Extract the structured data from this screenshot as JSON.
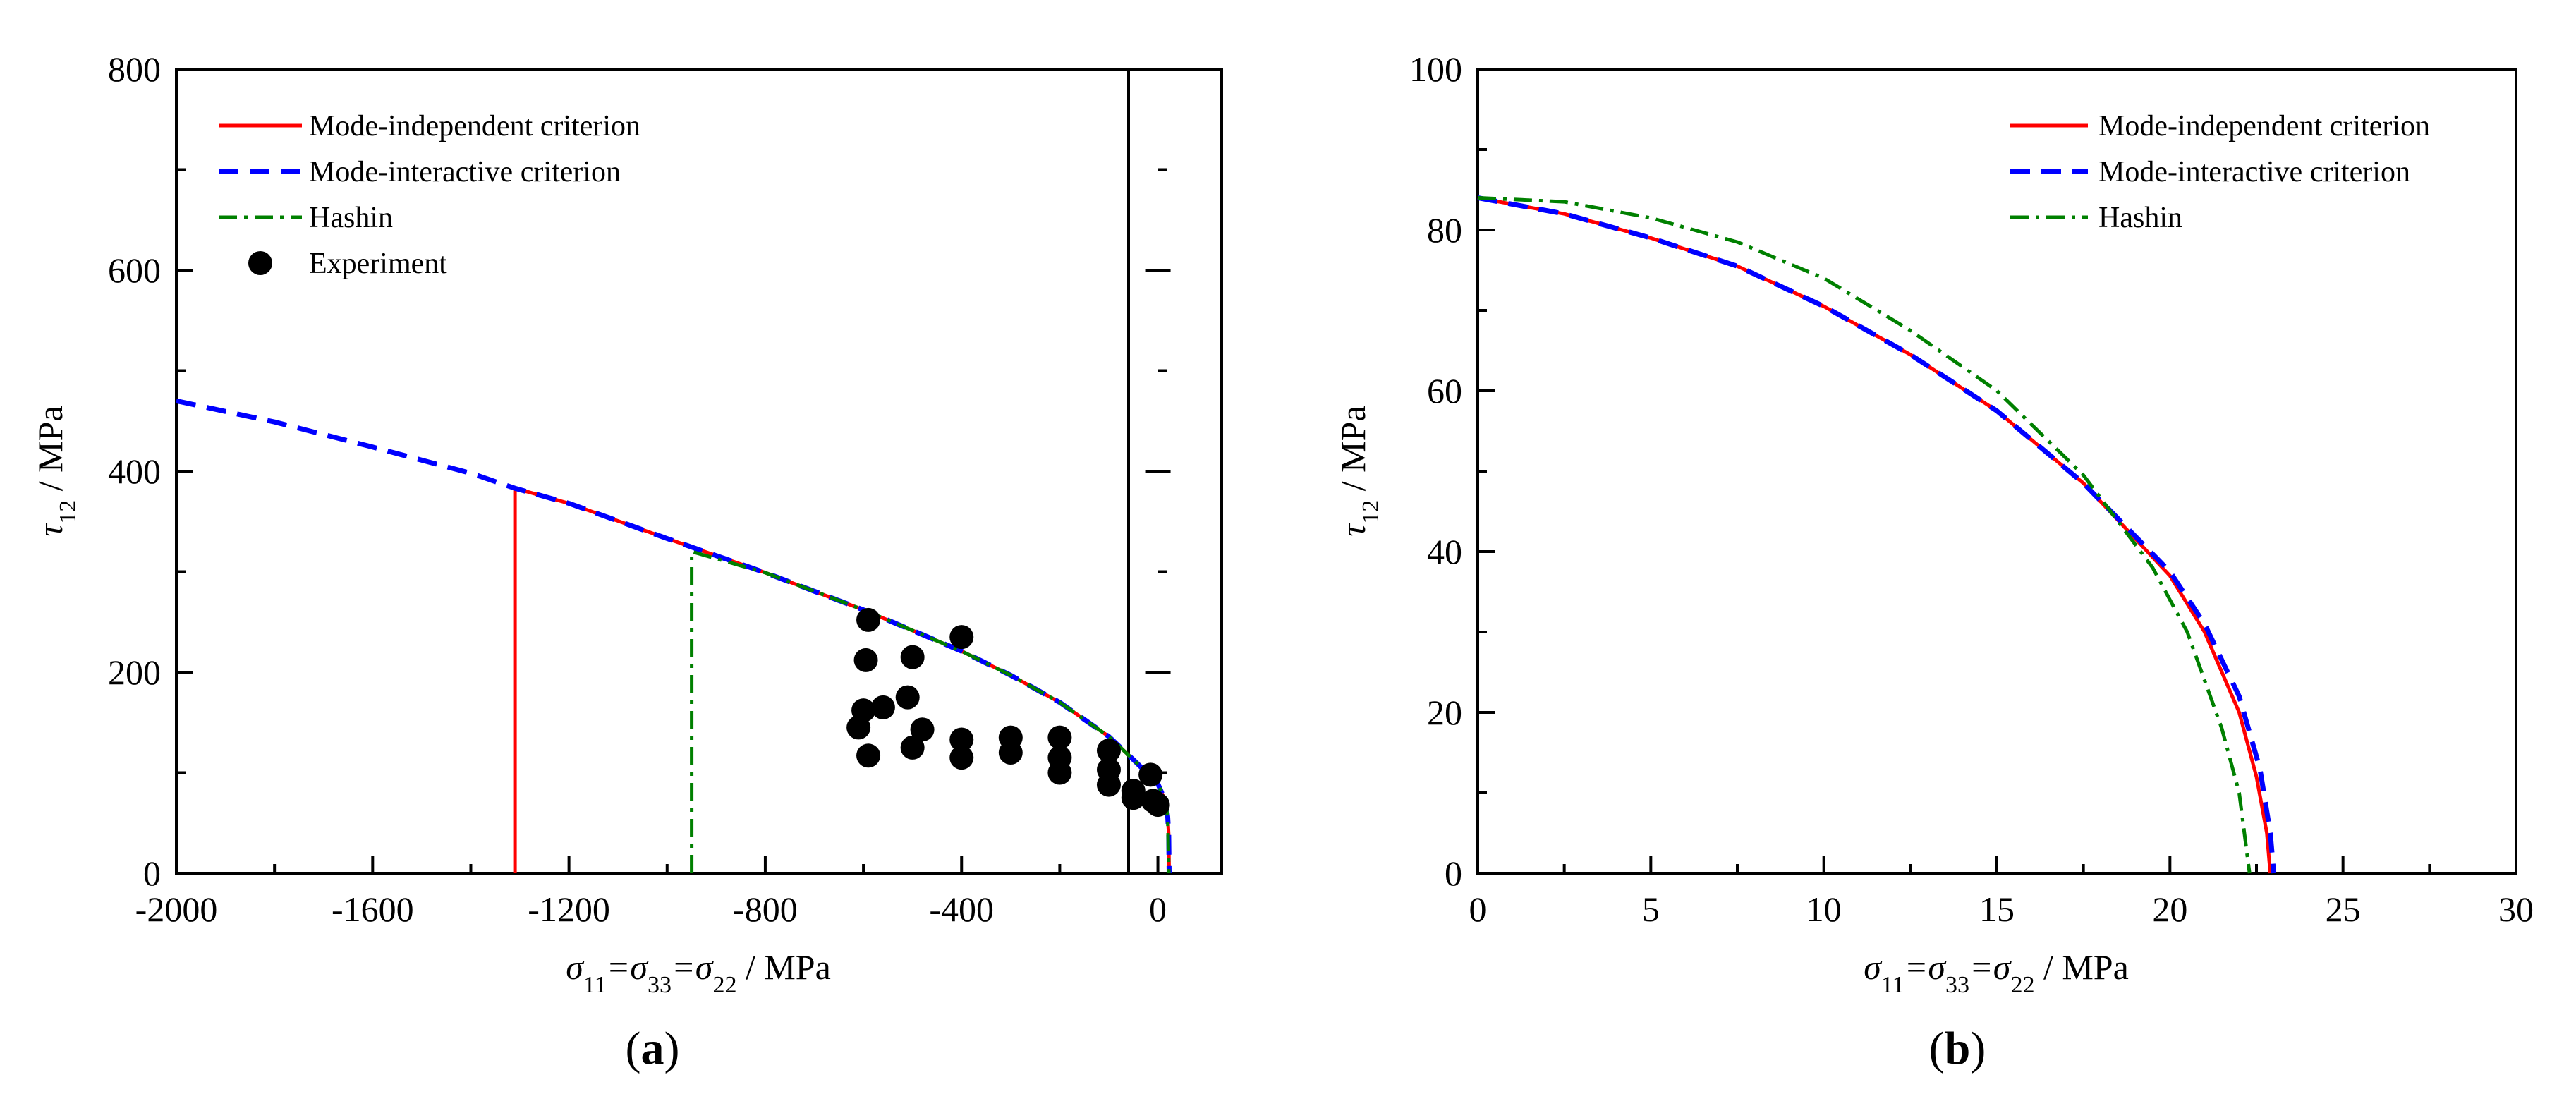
{
  "chart_data": [
    {
      "panel": "(a)",
      "panel_letter": "a",
      "type": "line",
      "xlabel_parts": [
        "σ",
        "11",
        "=σ",
        "33",
        "=σ",
        "22",
        "  / MPa"
      ],
      "ylabel_parts": [
        "τ",
        "12",
        " / MPa"
      ],
      "xlim": [
        -2000,
        130
      ],
      "ylim": [
        0,
        800
      ],
      "xticks": [
        -2000,
        -1600,
        -1200,
        -800,
        -400,
        0
      ],
      "yticks": [
        0,
        200,
        400,
        600,
        800
      ],
      "xtick_labels": [
        "-2000",
        "-1600",
        "-1200",
        "-800",
        "-400",
        "0"
      ],
      "ytick_labels": [
        "0",
        "200",
        "400",
        "600",
        "800"
      ],
      "zero_line": true,
      "legend": {
        "placement": "top-left",
        "entries": [
          "Mode-independent criterion",
          "Mode-interactive criterion",
          "Hashin",
          "Experiment"
        ]
      },
      "series": [
        {
          "name": "Mode-independent criterion",
          "color": "#ff0000",
          "style": "solid",
          "x": [
            -1310,
            -1310,
            -1200,
            -1000,
            -800,
            -600,
            -400,
            -300,
            -200,
            -100,
            -50,
            0,
            15,
            20,
            22,
            22.9
          ],
          "y": [
            0,
            383,
            368,
            333,
            299,
            262,
            221,
            197,
            170,
            136,
            113,
            89,
            72,
            56,
            38,
            0
          ]
        },
        {
          "name": "Mode-interactive criterion",
          "color": "#0000ff",
          "style": "dashed",
          "x": [
            -2000,
            -1800,
            -1600,
            -1400,
            -1310,
            -1200,
            -1000,
            -800,
            -600,
            -400,
            -300,
            -200,
            -100,
            -50,
            0,
            15,
            20,
            22,
            22.9
          ],
          "y": [
            470,
            449,
            424,
            398,
            383,
            368,
            333,
            299,
            262,
            221,
            197,
            170,
            136,
            113,
            89,
            72,
            56,
            38,
            0
          ]
        },
        {
          "name": "Hashin",
          "color": "#008000",
          "style": "dashdot",
          "x": [
            -950,
            -950,
            -800,
            -600,
            -400,
            -300,
            -200,
            -100,
            -50,
            0,
            15,
            20,
            22.3
          ],
          "y": [
            0,
            320,
            299,
            262,
            221,
            197,
            170,
            136,
            113,
            89,
            72,
            56,
            0
          ]
        },
        {
          "name": "Experiment",
          "color": "#000000",
          "style": "marker",
          "x": [
            -590,
            -595,
            -600,
            -610,
            -590,
            -560,
            -500,
            -510,
            -480,
            -500,
            -400,
            -400,
            -400,
            -300,
            -300,
            -200,
            -200,
            -200,
            -100,
            -100,
            -100,
            -50,
            -50,
            -10,
            0,
            -15
          ],
          "y": [
            252,
            212,
            162,
            145,
            117,
            165,
            215,
            175,
            143,
            125,
            235,
            133,
            115,
            135,
            120,
            135,
            115,
            100,
            122,
            103,
            88,
            82,
            75,
            72,
            68,
            98
          ]
        }
      ]
    },
    {
      "panel": "(b)",
      "panel_letter": "b",
      "type": "line",
      "xlabel_parts": [
        "σ",
        "11",
        "=σ",
        "33",
        "=σ",
        "22",
        "  / MPa"
      ],
      "ylabel_parts": [
        "τ",
        "12",
        " / MPa"
      ],
      "xlim": [
        0,
        30
      ],
      "ylim": [
        0,
        100
      ],
      "xticks": [
        0,
        5,
        10,
        15,
        20,
        25,
        30
      ],
      "yticks": [
        0,
        20,
        40,
        60,
        80,
        100
      ],
      "xtick_labels": [
        "0",
        "5",
        "10",
        "15",
        "20",
        "25",
        "30"
      ],
      "ytick_labels": [
        "0",
        "20",
        "40",
        "60",
        "80",
        "100"
      ],
      "zero_line": false,
      "legend": {
        "placement": "top-right",
        "entries": [
          "Mode-independent criterion",
          "Mode-interactive criterion",
          "Hashin"
        ]
      },
      "series": [
        {
          "name": "Mode-independent criterion",
          "color": "#ff0000",
          "style": "solid",
          "x": [
            0,
            2.5,
            5,
            7.5,
            10,
            12.5,
            15,
            17.5,
            20,
            21,
            22,
            22.5,
            22.8,
            22.9
          ],
          "y": [
            84,
            82,
            79,
            75.5,
            70.5,
            64.5,
            57.5,
            48.5,
            37,
            30,
            20,
            12,
            5,
            0
          ]
        },
        {
          "name": "Mode-interactive criterion",
          "color": "#0000ff",
          "style": "dashed",
          "x": [
            0,
            2.5,
            5,
            7.5,
            10,
            12.5,
            15,
            17.5,
            20,
            21,
            22,
            22.6,
            22.9,
            23.0
          ],
          "y": [
            84,
            82,
            79,
            75.5,
            70.5,
            64.5,
            57.5,
            48.5,
            37.5,
            31,
            22,
            13,
            5,
            0
          ]
        },
        {
          "name": "Hashin",
          "color": "#008000",
          "style": "dashdot",
          "x": [
            0,
            2.5,
            5,
            7.5,
            10,
            12.5,
            15,
            17.5,
            19.5,
            20.5,
            21.5,
            22.0,
            22.3
          ],
          "y": [
            84,
            83.5,
            81.5,
            78.5,
            74,
            67.5,
            60,
            49.5,
            38,
            30,
            18,
            10,
            0
          ]
        }
      ]
    }
  ]
}
